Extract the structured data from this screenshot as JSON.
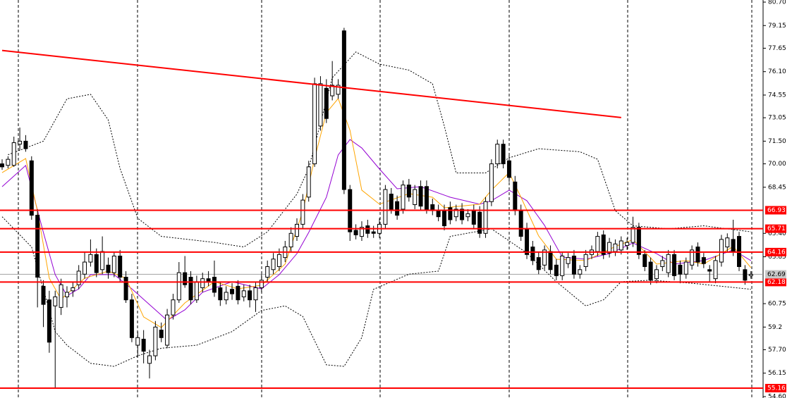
{
  "chart_data": {
    "type": "candlestick",
    "ylim": [
      54.6,
      80.7
    ],
    "yticks": [
      {
        "value": 80.7,
        "label": "80.70"
      },
      79.15,
      77.65,
      {
        "value": 76.1,
        "label": "76.10"
      },
      74.55,
      73.05,
      {
        "value": 71.5,
        "label": "71.50"
      },
      {
        "value": 70,
        "label": "70.00"
      },
      68.45,
      {
        "value": 65.4,
        "label": "65.40"
      },
      63.85,
      60.75,
      59.2,
      {
        "value": 57.7,
        "label": "57.70"
      },
      56.15,
      {
        "value": 54.6,
        "label": "54.60"
      }
    ],
    "candles": [
      [
        70.0,
        70.3,
        69.6,
        69.8
      ],
      [
        69.9,
        70.5,
        69.7,
        70.3
      ],
      [
        69.9,
        71.8,
        69.8,
        71.4
      ],
      [
        71.3,
        72.4,
        70.9,
        71.5
      ],
      [
        71.5,
        71.9,
        70.8,
        71.0
      ],
      [
        70.2,
        70.5,
        66.3,
        66.6
      ],
      [
        66.6,
        67.0,
        60.5,
        62.5
      ],
      [
        61.9,
        62.3,
        59.2,
        60.7
      ],
      [
        61.0,
        61.6,
        57.5,
        58.2
      ],
      [
        60.6,
        61.6,
        55.2,
        61.2
      ],
      [
        60.5,
        62.4,
        60.0,
        62.0
      ],
      [
        61.2,
        61.9,
        60.5,
        61.5
      ],
      [
        61.6,
        62.2,
        61.2,
        61.8
      ],
      [
        62.0,
        63.3,
        61.7,
        62.9
      ],
      [
        62.7,
        64.2,
        62.4,
        63.5
      ],
      [
        63.5,
        65.0,
        63.2,
        64.0
      ],
      [
        64.0,
        64.4,
        62.5,
        62.8
      ],
      [
        63.0,
        65.2,
        62.7,
        64.2
      ],
      [
        63.3,
        63.8,
        62.4,
        62.8
      ],
      [
        62.8,
        64.2,
        62.5,
        63.9
      ],
      [
        63.9,
        64.3,
        62.2,
        62.5
      ],
      [
        62.5,
        62.9,
        60.8,
        61.0
      ],
      [
        61.0,
        61.4,
        58.2,
        58.5
      ],
      [
        58.0,
        58.9,
        57.2,
        58.5
      ],
      [
        58.4,
        59.0,
        56.8,
        57.6
      ],
      [
        56.8,
        57.7,
        55.8,
        57.3
      ],
      [
        57.3,
        59.6,
        57.0,
        59.2
      ],
      [
        59.0,
        59.5,
        58.2,
        58.5
      ],
      [
        58.0,
        60.4,
        57.8,
        60.0
      ],
      [
        60.0,
        61.4,
        59.7,
        61.0
      ],
      [
        61.0,
        63.5,
        60.8,
        62.8
      ],
      [
        62.8,
        63.9,
        61.8,
        62.0
      ],
      [
        62.5,
        62.9,
        60.7,
        61.0
      ],
      [
        61.0,
        62.6,
        60.8,
        62.2
      ],
      [
        61.8,
        62.8,
        61.5,
        62.4
      ],
      [
        62.4,
        62.9,
        61.9,
        62.2
      ],
      [
        62.5,
        63.6,
        61.2,
        61.5
      ],
      [
        61.8,
        62.2,
        60.6,
        61.0
      ],
      [
        61.0,
        61.9,
        60.7,
        61.5
      ],
      [
        61.7,
        62.1,
        61.0,
        61.4
      ],
      [
        61.9,
        62.3,
        60.7,
        61.0
      ],
      [
        61.2,
        62.0,
        60.9,
        61.6
      ],
      [
        61.6,
        62.0,
        60.5,
        61.0
      ],
      [
        61.0,
        62.2,
        60.2,
        61.8
      ],
      [
        61.8,
        62.7,
        61.5,
        62.3
      ],
      [
        62.5,
        63.6,
        62.2,
        63.2
      ],
      [
        63.0,
        64.1,
        62.7,
        63.7
      ],
      [
        63.2,
        64.4,
        62.9,
        64.0
      ],
      [
        63.8,
        64.9,
        63.5,
        64.5
      ],
      [
        64.5,
        65.8,
        64.2,
        65.4
      ],
      [
        65.2,
        66.4,
        64.9,
        66.0
      ],
      [
        66.0,
        68.0,
        65.7,
        67.6
      ],
      [
        67.8,
        70.2,
        67.5,
        69.8
      ],
      [
        70.0,
        75.7,
        69.8,
        75.3
      ],
      [
        72.5,
        75.8,
        72.2,
        75.3
      ],
      [
        75.0,
        75.6,
        72.7,
        73.0
      ],
      [
        74.5,
        76.8,
        74.2,
        75.2
      ],
      [
        74.6,
        75.6,
        74.3,
        75.2
      ],
      [
        78.8,
        79.0,
        68.0,
        68.3
      ],
      [
        68.3,
        68.6,
        64.9,
        65.5
      ],
      [
        65.6,
        66.0,
        65.0,
        65.3
      ],
      [
        65.2,
        66.2,
        64.9,
        65.8
      ],
      [
        65.9,
        66.3,
        65.1,
        65.4
      ],
      [
        65.5,
        65.9,
        65.1,
        65.4
      ],
      [
        65.4,
        66.4,
        65.1,
        66.0
      ],
      [
        66.0,
        68.6,
        65.7,
        68.3
      ],
      [
        68.0,
        68.4,
        66.7,
        67.0
      ],
      [
        67.5,
        67.9,
        66.3,
        66.6
      ],
      [
        67.0,
        68.9,
        66.7,
        68.6
      ],
      [
        68.6,
        69.0,
        67.5,
        67.8
      ],
      [
        67.3,
        68.6,
        67.0,
        68.3
      ],
      [
        68.5,
        68.9,
        66.9,
        67.2
      ],
      [
        68.5,
        68.9,
        66.7,
        67.0
      ],
      [
        67.3,
        67.7,
        66.6,
        66.9
      ],
      [
        66.9,
        67.3,
        66.2,
        66.5
      ],
      [
        66.9,
        67.3,
        65.6,
        65.9
      ],
      [
        67.1,
        67.5,
        66.0,
        66.3
      ],
      [
        66.5,
        67.3,
        66.2,
        67.0
      ],
      [
        67.0,
        67.4,
        66.0,
        66.3
      ],
      [
        66.5,
        67.0,
        66.2,
        66.7
      ],
      [
        66.9,
        67.3,
        65.7,
        66.0
      ],
      [
        66.8,
        67.2,
        65.1,
        65.4
      ],
      [
        65.4,
        67.8,
        65.1,
        67.5
      ],
      [
        67.5,
        70.3,
        67.2,
        70.0
      ],
      [
        70.0,
        71.6,
        69.7,
        71.3
      ],
      [
        71.3,
        71.6,
        69.7,
        70.0
      ],
      [
        70.2,
        70.6,
        68.8,
        69.1
      ],
      [
        68.8,
        69.2,
        66.6,
        66.9
      ],
      [
        66.9,
        67.3,
        64.9,
        65.2
      ],
      [
        65.7,
        66.1,
        63.7,
        64.0
      ],
      [
        64.5,
        64.9,
        63.3,
        63.6
      ],
      [
        63.8,
        64.2,
        62.7,
        63.0
      ],
      [
        63.3,
        64.6,
        63.0,
        64.3
      ],
      [
        64.2,
        64.6,
        62.7,
        63.0
      ],
      [
        63.3,
        63.7,
        62.3,
        62.6
      ],
      [
        62.6,
        64.2,
        62.3,
        63.9
      ],
      [
        63.4,
        64.1,
        63.1,
        63.8
      ],
      [
        63.9,
        64.3,
        62.4,
        62.7
      ],
      [
        62.7,
        63.3,
        62.4,
        63.0
      ],
      [
        63.2,
        64.3,
        62.9,
        64.0
      ],
      [
        64.0,
        64.6,
        63.7,
        64.3
      ],
      [
        64.2,
        65.5,
        63.9,
        65.2
      ],
      [
        65.3,
        65.6,
        63.7,
        64.0
      ],
      [
        64.1,
        65.1,
        63.8,
        64.8
      ],
      [
        64.2,
        65.0,
        63.9,
        64.7
      ],
      [
        64.3,
        65.2,
        64.0,
        64.9
      ],
      [
        64.6,
        65.1,
        64.3,
        64.8
      ],
      [
        64.8,
        66.5,
        64.5,
        65.8
      ],
      [
        65.8,
        66.1,
        63.7,
        64.0
      ],
      [
        64.0,
        64.3,
        62.9,
        63.2
      ],
      [
        63.5,
        63.8,
        62.0,
        62.3
      ],
      [
        62.4,
        63.3,
        62.1,
        63.0
      ],
      [
        63.2,
        63.9,
        62.9,
        63.6
      ],
      [
        62.8,
        64.3,
        62.5,
        64.0
      ],
      [
        64.0,
        64.3,
        62.3,
        62.6
      ],
      [
        63.3,
        63.6,
        62.1,
        62.7
      ],
      [
        62.7,
        63.8,
        62.4,
        63.5
      ],
      [
        63.3,
        64.6,
        63.0,
        64.3
      ],
      [
        64.5,
        64.8,
        63.2,
        63.5
      ],
      [
        63.8,
        64.1,
        63.1,
        63.4
      ],
      [
        63.0,
        63.3,
        62.2,
        62.9
      ],
      [
        62.4,
        63.9,
        62.1,
        63.6
      ],
      [
        63.5,
        65.3,
        63.2,
        65.0
      ],
      [
        64.5,
        65.4,
        64.2,
        65.1
      ],
      [
        65.0,
        66.3,
        63.9,
        64.2
      ],
      [
        65.2,
        65.5,
        62.9,
        63.2
      ],
      [
        63.0,
        63.3,
        62.0,
        62.3
      ],
      [
        62.6,
        62.9,
        62.4,
        62.69
      ]
    ],
    "indicators": [
      {
        "color": "#000000",
        "dash": true,
        "x": [
          1,
          7,
          11,
          15,
          18,
          20,
          23,
          27,
          36,
          41,
          45,
          50,
          52,
          56,
          60,
          64,
          69,
          73,
          75,
          77,
          82,
          86,
          91,
          98,
          101,
          104,
          107,
          113,
          119,
          127
        ],
        "values": [
          70.6,
          71.5,
          74.3,
          74.6,
          72.9,
          69.7,
          66.4,
          65.2,
          64.8,
          64.5,
          65.5,
          68.0,
          69.7,
          75.7,
          77.4,
          76.6,
          76.2,
          75.3,
          72.5,
          69.4,
          69.4,
          70.4,
          71.0,
          70.8,
          70.3,
          66.9,
          65.9,
          65.7,
          65.9,
          65.5
        ]
      },
      {
        "color": "#000000",
        "dash": true,
        "x": [
          0,
          5,
          9,
          11,
          15,
          19,
          23,
          27,
          33,
          39,
          44,
          48,
          51,
          55,
          58,
          61,
          63,
          69,
          74,
          76,
          83,
          89,
          94,
          99,
          102,
          105,
          110,
          117,
          127
        ],
        "values": [
          66.5,
          64.5,
          58.9,
          58.0,
          56.8,
          56.6,
          57.3,
          57.8,
          58.0,
          58.9,
          60.3,
          60.6,
          59.9,
          56.7,
          56.6,
          58.5,
          61.7,
          62.7,
          62.9,
          65.2,
          65.7,
          64.1,
          62.2,
          60.6,
          61.0,
          62.2,
          62.3,
          62.1,
          61.7
        ]
      },
      {
        "color": "#9400d3",
        "dash": false,
        "x": [
          0,
          4,
          7,
          9,
          11,
          13,
          15,
          19,
          22,
          26,
          28,
          31,
          34,
          39,
          44,
          47,
          50,
          52,
          55,
          57,
          59,
          61,
          64,
          67,
          71,
          76,
          81,
          83,
          86,
          89,
          92,
          95,
          99,
          103,
          107,
          111,
          114,
          119,
          124,
          127
        ],
        "values": [
          68.49,
          69.89,
          65.46,
          62.67,
          61.27,
          61.73,
          62.67,
          62.67,
          61.73,
          60.34,
          59.64,
          60.34,
          61.5,
          62.2,
          61.73,
          62.67,
          64.06,
          65.46,
          67.79,
          70.59,
          71.61,
          71.05,
          69.66,
          68.35,
          68.49,
          67.79,
          67.33,
          67.56,
          68.26,
          67.56,
          65.93,
          63.83,
          63.69,
          64.06,
          64.76,
          64.06,
          63.37,
          63.6,
          64.3,
          63.6
        ]
      },
      {
        "color": "#ffa500",
        "dash": false,
        "x": [
          0,
          4,
          6,
          8,
          10,
          14,
          18,
          21,
          24,
          27,
          31,
          36,
          40,
          44,
          48,
          51,
          53,
          55,
          57,
          59,
          61,
          64,
          69,
          73,
          75,
          81,
          83,
          86,
          88,
          91,
          94,
          99,
          104,
          107,
          111,
          116,
          119,
          124,
          127
        ],
        "values": [
          69.42,
          70.35,
          66.86,
          62.43,
          61.04,
          62.43,
          62.9,
          62.43,
          59.87,
          59.17,
          60.8,
          62.2,
          61.73,
          61.97,
          63.37,
          66.86,
          70.35,
          73.38,
          74.32,
          72.22,
          68.26,
          67.33,
          68.03,
          67.79,
          67.09,
          67.33,
          68.26,
          69.42,
          67.79,
          65.23,
          63.69,
          63.6,
          64.53,
          64.99,
          63.37,
          63.6,
          63.37,
          64.53,
          63.13
        ]
      }
    ],
    "trendline": {
      "color": "#ff0000",
      "x": [
        0,
        105
      ],
      "values": [
        77.5,
        73.06
      ]
    },
    "levels": [
      66.93,
      65.71,
      64.16,
      62.18,
      55.16
    ],
    "level_color": "#ff0000",
    "last_price": 62.69
  }
}
